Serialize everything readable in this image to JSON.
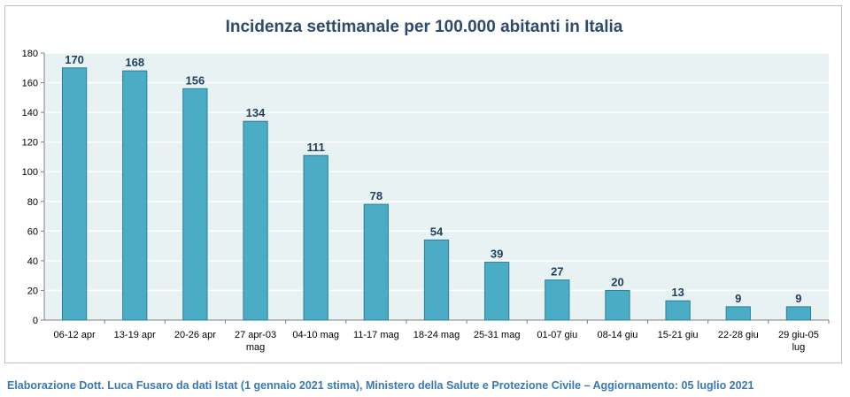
{
  "chart_data": {
    "type": "bar",
    "title": "Incidenza settimanale per 100.000 abitanti in Italia",
    "categories": [
      [
        "06-12 apr"
      ],
      [
        "13-19 apr"
      ],
      [
        "20-26 apr"
      ],
      [
        "27 apr-03",
        "mag"
      ],
      [
        "04-10 mag"
      ],
      [
        "11-17 mag"
      ],
      [
        "18-24 mag"
      ],
      [
        "25-31 mag"
      ],
      [
        "01-07 giu"
      ],
      [
        "08-14 giu"
      ],
      [
        "15-21 giu"
      ],
      [
        "22-28 giu"
      ],
      [
        "29 giu-05",
        "lug"
      ]
    ],
    "values": [
      170,
      168,
      156,
      134,
      111,
      78,
      54,
      39,
      27,
      20,
      13,
      9,
      9
    ],
    "ylim": [
      0,
      180
    ],
    "yticks": [
      0,
      20,
      40,
      60,
      80,
      100,
      120,
      140,
      160,
      180
    ],
    "grid": true,
    "colors": {
      "bar": "#4bacc6",
      "bar_edge": "#2c7f96",
      "plot_bg": "#e9f2f3",
      "grid": "#ffffff",
      "axis": "#7f7f7f",
      "data_label": "#1f3f5c",
      "tick_label": "#000000"
    }
  },
  "footer": {
    "source_note": "Elaborazione Dott. Luca Fusaro da dati Istat (1 gennaio 2021 stima), Ministero della Salute e Protezione Civile – Aggiornamento: 05 luglio 2021"
  }
}
